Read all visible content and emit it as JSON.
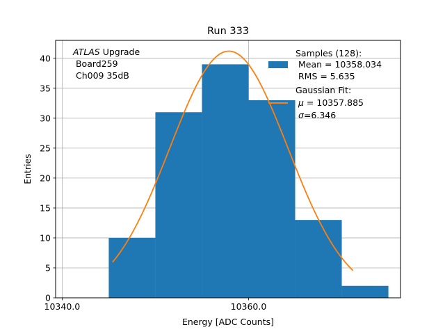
{
  "chart_data": {
    "type": "bar",
    "title": "Run 333",
    "xlabel": "Energy [ADC Counts]",
    "ylabel": "Entries",
    "xlim": [
      10339.3,
      10376.3
    ],
    "ylim": [
      0,
      43
    ],
    "xticks": [
      10340.0,
      10360.0
    ],
    "xtick_labels": [
      "10340.0",
      "10360.0"
    ],
    "yticks": [
      0,
      5,
      10,
      15,
      20,
      25,
      30,
      35,
      40
    ],
    "ytick_labels": [
      "0",
      "5",
      "10",
      "15",
      "20",
      "25",
      "30",
      "35",
      "40"
    ],
    "grid": true,
    "bins": [
      {
        "x0": 10345.0,
        "x1": 10350.0,
        "value": 10
      },
      {
        "x0": 10350.0,
        "x1": 10355.0,
        "value": 31
      },
      {
        "x0": 10355.0,
        "x1": 10360.0,
        "value": 39
      },
      {
        "x0": 10360.0,
        "x1": 10365.0,
        "value": 33
      },
      {
        "x0": 10365.0,
        "x1": 10370.0,
        "value": 13
      },
      {
        "x0": 10370.0,
        "x1": 10375.0,
        "value": 2
      }
    ],
    "fit": {
      "type": "gaussian",
      "x_range": [
        10345.4,
        10371.2
      ],
      "amplitude": 41.2,
      "mu": 10357.885,
      "sigma": 6.346
    },
    "colors": {
      "bars": "#1f77b4",
      "fit": "#ff7f0e",
      "grid": "#b0b0b0"
    },
    "annotation": {
      "line1_italic": "ATLAS",
      "line1_rest": " Upgrade",
      "line2": " Board259",
      "line3": " Ch009 35dB"
    },
    "legend": {
      "placement": "top-right",
      "hist_line1": "Samples (128):",
      "hist_line2": " Mean = 10358.034",
      "hist_line3": " RMS = 5.635",
      "fit_line1": "Gaussian Fit:",
      "fit_mu_sym": "μ",
      "fit_mu_val": " = 10357.885",
      "fit_sigma_sym": "σ",
      "fit_sigma_val": "=6.346"
    }
  }
}
